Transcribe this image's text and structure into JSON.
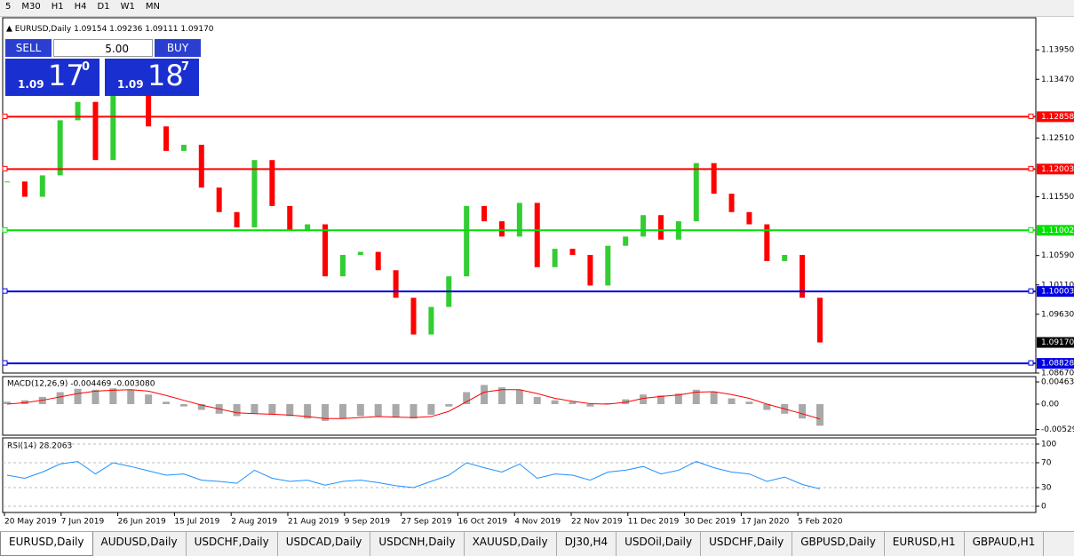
{
  "toolbar": {
    "timeframes": [
      "5",
      "M30",
      "H1",
      "H4",
      "D1",
      "W1",
      "MN"
    ]
  },
  "symbol_header": {
    "symbol": "EURUSD,Daily",
    "ohlc": "1.09154 1.09236 1.09111 1.09170"
  },
  "trade_panel": {
    "sell": "SELL",
    "buy": "BUY",
    "lot": "5.00",
    "sell_price": {
      "big": "1.09",
      "main": "17",
      "sup": "0"
    },
    "buy_price": {
      "big": "1.09",
      "main": "18",
      "sup": "7"
    }
  },
  "price_chart": {
    "ylim": [
      1.0867,
      1.14475
    ],
    "yticks": [
      {
        "value": 1.1395,
        "label": "1.13950"
      },
      {
        "value": 1.1347,
        "label": "1.13470"
      },
      {
        "value": 1.1251,
        "label": "1.12510"
      },
      {
        "value": 1.1155,
        "label": "1.11550"
      },
      {
        "value": 1.1059,
        "label": "1.10590"
      },
      {
        "value": 1.1011,
        "label": "1.10110"
      },
      {
        "value": 1.0963,
        "label": "1.09630"
      },
      {
        "value": 1.0867,
        "label": "1.08670"
      }
    ],
    "up_color": "#32cd32",
    "down_color": "#ff0000",
    "closes": [
      1.118,
      1.1155,
      1.119,
      1.128,
      1.131,
      1.1215,
      1.134,
      1.132,
      1.127,
      1.123,
      1.124,
      1.117,
      1.113,
      1.1105,
      1.1215,
      1.114,
      1.11,
      1.111,
      1.1025,
      1.106,
      1.1065,
      1.1035,
      1.099,
      1.093,
      1.0975,
      1.1025,
      1.114,
      1.1115,
      1.109,
      1.1145,
      1.104,
      1.107,
      1.106,
      1.101,
      1.1075,
      1.109,
      1.1125,
      1.1085,
      1.1115,
      1.121,
      1.116,
      1.113,
      1.111,
      1.105,
      1.106,
      1.099,
      1.0917
    ],
    "levels": [
      {
        "value": 1.12858,
        "label": "1.12858",
        "color": "#ff0000"
      },
      {
        "value": 1.12003,
        "label": "1.12003",
        "color": "#ff0000"
      },
      {
        "value": 1.11002,
        "label": "1.11002",
        "color": "#00e000"
      },
      {
        "value": 1.10003,
        "label": "1.10003",
        "color": "#0000e0"
      },
      {
        "value": 1.08828,
        "label": "1.08828",
        "color": "#0000e0"
      }
    ],
    "last_price": {
      "value": 1.0917,
      "label": "1.09170"
    }
  },
  "macd": {
    "label": "MACD(12,26,9) -0.004469 -0.003080",
    "ylim": [
      -0.00648,
      0.00574
    ],
    "yticks": [
      0.00463,
      {
        "value": 0,
        "label": "0.00"
      },
      -0.00529
    ],
    "histogram_color": "#a9a9a9",
    "signal_color": "#ff0000",
    "histogram": [
      0.0005,
      0.0008,
      0.0015,
      0.0025,
      0.0032,
      0.003,
      0.0033,
      0.003,
      0.002,
      0.0005,
      -0.0005,
      -0.0012,
      -0.002,
      -0.0025,
      -0.002,
      -0.0022,
      -0.0025,
      -0.003,
      -0.0035,
      -0.003,
      -0.0025,
      -0.0025,
      -0.0028,
      -0.003,
      -0.0022,
      -0.0005,
      0.0025,
      0.004,
      0.0035,
      0.003,
      0.0015,
      0.0008,
      0.0005,
      -0.0005,
      0.0002,
      0.001,
      0.002,
      0.0018,
      0.0022,
      0.003,
      0.0025,
      0.0012,
      0.0005,
      -0.0012,
      -0.002,
      -0.003,
      -0.0045
    ],
    "signal": [
      0,
      0.0003,
      0.0008,
      0.0015,
      0.0022,
      0.0027,
      0.0029,
      0.003,
      0.0027,
      0.0018,
      0.0008,
      -0.0002,
      -0.001,
      -0.0018,
      -0.002,
      -0.0021,
      -0.0023,
      -0.0026,
      -0.003,
      -0.003,
      -0.0028,
      -0.0026,
      -0.0027,
      -0.0028,
      -0.0026,
      -0.0015,
      0.0005,
      0.0025,
      0.003,
      0.003,
      0.0022,
      0.0012,
      0.0006,
      0.0001,
      0,
      0.0004,
      0.0012,
      0.0016,
      0.0019,
      0.0025,
      0.0026,
      0.002,
      0.0012,
      0,
      -0.001,
      -0.002,
      -0.0031
    ]
  },
  "rsi": {
    "label": "RSI(14) 28.2063",
    "ylim": [
      -10,
      110
    ],
    "yticks": [
      100,
      70,
      30,
      0
    ],
    "color": "#1e90ff",
    "values": [
      50,
      45,
      55,
      68,
      72,
      52,
      70,
      64,
      57,
      50,
      52,
      42,
      40,
      37,
      58,
      45,
      40,
      42,
      34,
      40,
      42,
      38,
      33,
      30,
      40,
      50,
      70,
      62,
      55,
      68,
      45,
      52,
      50,
      42,
      55,
      58,
      64,
      52,
      58,
      72,
      62,
      55,
      52,
      40,
      47,
      35,
      28
    ]
  },
  "dates": [
    "20 May 2019",
    "7 Jun 2019",
    "26 Jun 2019",
    "15 Jul 2019",
    "2 Aug 2019",
    "21 Aug 2019",
    "9 Sep 2019",
    "27 Sep 2019",
    "16 Oct 2019",
    "4 Nov 2019",
    "22 Nov 2019",
    "11 Dec 2019",
    "30 Dec 2019",
    "17 Jan 2020",
    "5 Feb 2020"
  ],
  "tabs": [
    "EURUSD,Daily",
    "AUDUSD,Daily",
    "USDCHF,Daily",
    "USDCAD,Daily",
    "USDCNH,Daily",
    "XAUUSD,Daily",
    "DJ30,H4",
    "USDOil,Daily",
    "USDCHF,Daily",
    "GBPUSD,Daily",
    "EURUSD,H1",
    "GBPAUD,H1"
  ]
}
